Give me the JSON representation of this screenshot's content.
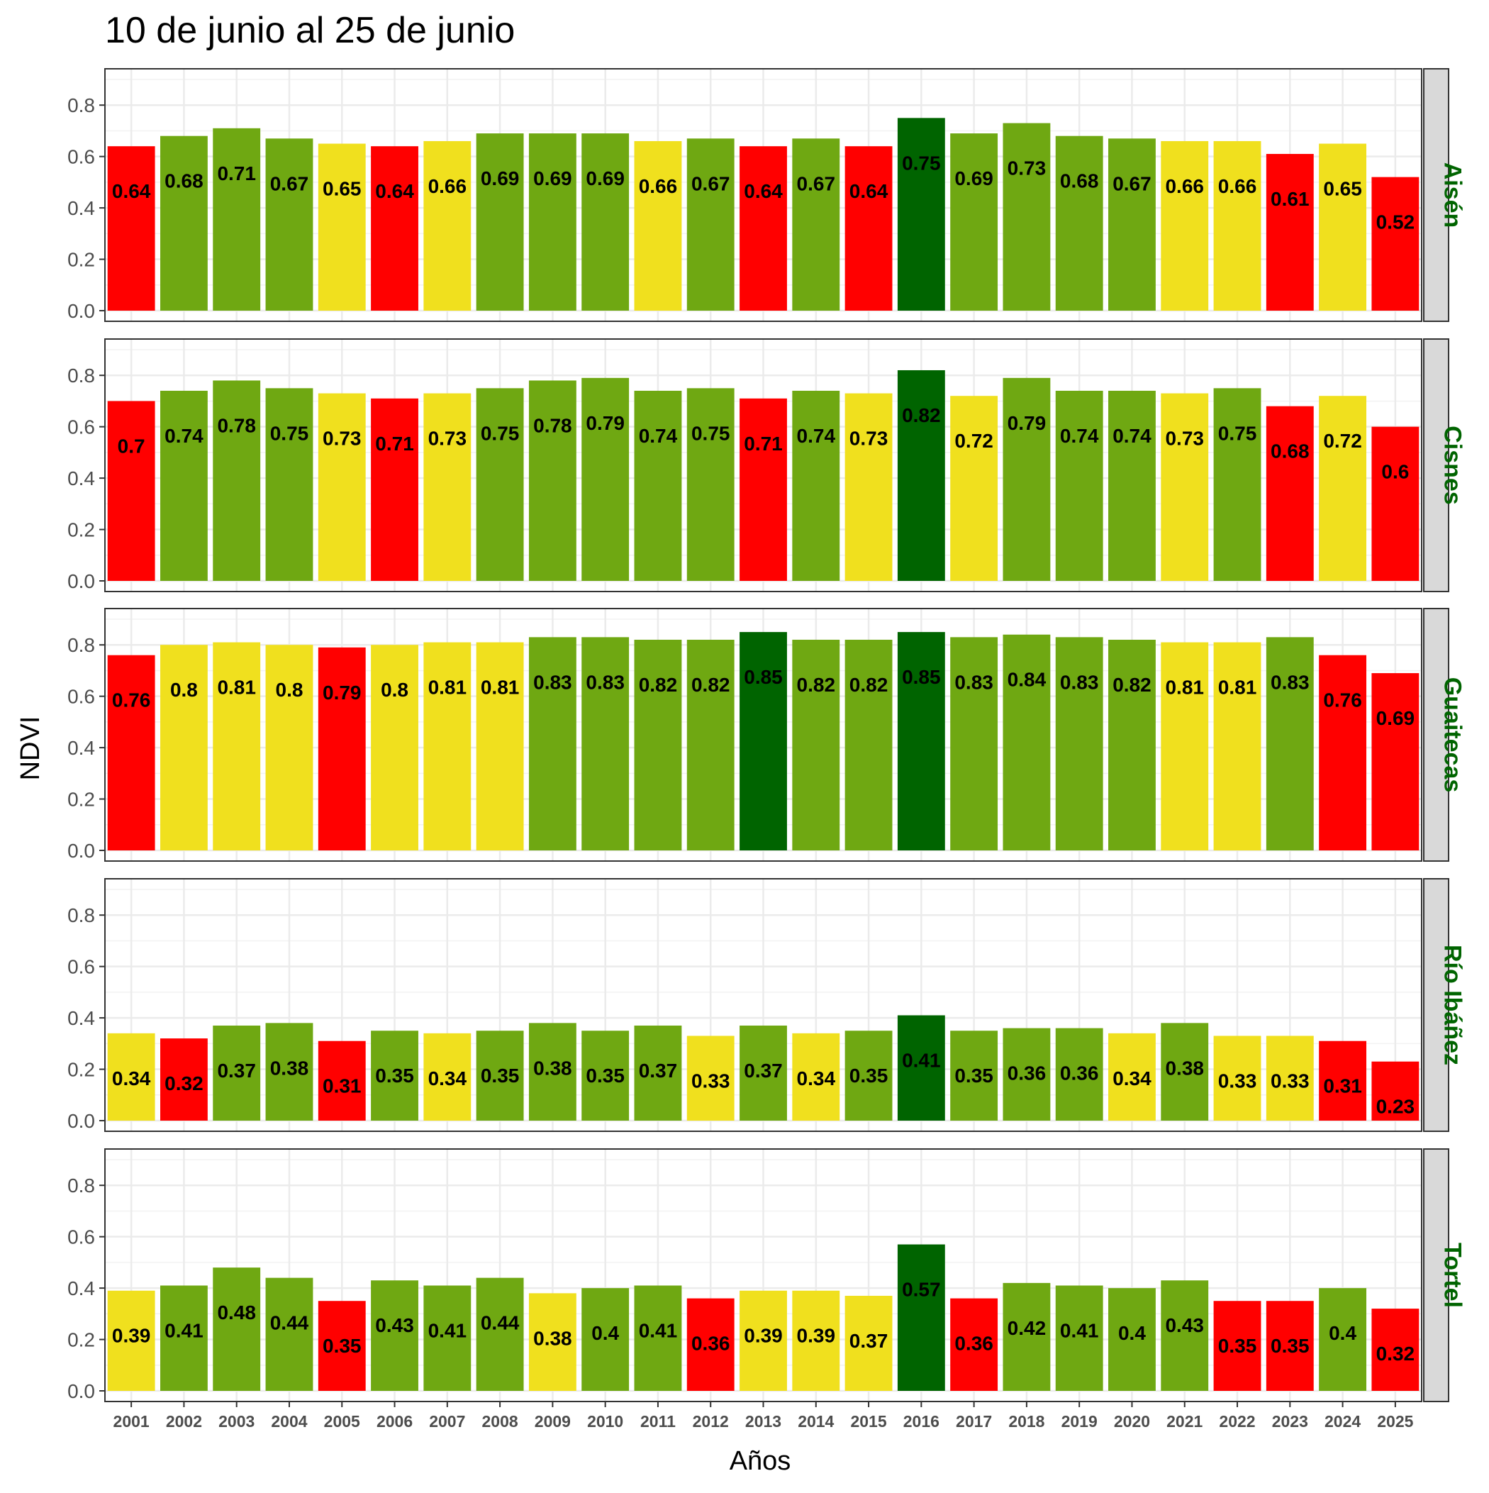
{
  "chart_data": {
    "type": "bar",
    "title": "10 de junio al 25 de junio",
    "xlabel": "Años",
    "ylabel": "NDVI",
    "ylim": [
      0,
      0.9
    ],
    "yticks": [
      "0.0",
      "0.2",
      "0.4",
      "0.6",
      "0.8"
    ],
    "grid": true,
    "layout": "faceted-rows",
    "categories": [
      "2001",
      "2002",
      "2003",
      "2004",
      "2005",
      "2006",
      "2007",
      "2008",
      "2009",
      "2010",
      "2011",
      "2012",
      "2013",
      "2014",
      "2015",
      "2016",
      "2017",
      "2018",
      "2019",
      "2020",
      "2021",
      "2022",
      "2023",
      "2024",
      "2025"
    ],
    "colors": {
      "red": "#ff0000",
      "yellow": "#f0e01e",
      "green": "#6fa812",
      "darkgreen": "#006400"
    },
    "panels": [
      {
        "name": "Aisén",
        "values": [
          0.64,
          0.68,
          0.71,
          0.67,
          0.65,
          0.64,
          0.66,
          0.69,
          0.69,
          0.69,
          0.66,
          0.67,
          0.64,
          0.67,
          0.64,
          0.75,
          0.69,
          0.73,
          0.68,
          0.67,
          0.66,
          0.66,
          0.61,
          0.65,
          0.52
        ],
        "labels": [
          "0.64",
          "0.68",
          "0.71",
          "0.67",
          "0.65",
          "0.64",
          "0.66",
          "0.69",
          "0.69",
          "0.69",
          "0.66",
          "0.67",
          "0.64",
          "0.67",
          "0.64",
          "0.75",
          "0.69",
          "0.73",
          "0.68",
          "0.67",
          "0.66",
          "0.66",
          "0.61",
          "0.65",
          "0.52"
        ],
        "colors": [
          "red",
          "green",
          "green",
          "green",
          "yellow",
          "red",
          "yellow",
          "green",
          "green",
          "green",
          "yellow",
          "green",
          "red",
          "green",
          "red",
          "darkgreen",
          "green",
          "green",
          "green",
          "green",
          "yellow",
          "yellow",
          "red",
          "yellow",
          "red"
        ]
      },
      {
        "name": "Cisnes",
        "values": [
          0.7,
          0.74,
          0.78,
          0.75,
          0.73,
          0.71,
          0.73,
          0.75,
          0.78,
          0.79,
          0.74,
          0.75,
          0.71,
          0.74,
          0.73,
          0.82,
          0.72,
          0.79,
          0.74,
          0.74,
          0.73,
          0.75,
          0.68,
          0.72,
          0.6
        ],
        "labels": [
          "0.7",
          "0.74",
          "0.78",
          "0.75",
          "0.73",
          "0.71",
          "0.73",
          "0.75",
          "0.78",
          "0.79",
          "0.74",
          "0.75",
          "0.71",
          "0.74",
          "0.73",
          "0.82",
          "0.72",
          "0.79",
          "0.74",
          "0.74",
          "0.73",
          "0.75",
          "0.68",
          "0.72",
          "0.6"
        ],
        "colors": [
          "red",
          "green",
          "green",
          "green",
          "yellow",
          "red",
          "yellow",
          "green",
          "green",
          "green",
          "green",
          "green",
          "red",
          "green",
          "yellow",
          "darkgreen",
          "yellow",
          "green",
          "green",
          "green",
          "yellow",
          "green",
          "red",
          "yellow",
          "red"
        ]
      },
      {
        "name": "Guaitecas",
        "values": [
          0.76,
          0.8,
          0.81,
          0.8,
          0.79,
          0.8,
          0.81,
          0.81,
          0.83,
          0.83,
          0.82,
          0.82,
          0.85,
          0.82,
          0.82,
          0.85,
          0.83,
          0.84,
          0.83,
          0.82,
          0.81,
          0.81,
          0.83,
          0.76,
          0.69
        ],
        "labels": [
          "0.76",
          "0.8",
          "0.81",
          "0.8",
          "0.79",
          "0.8",
          "0.81",
          "0.81",
          "0.83",
          "0.83",
          "0.82",
          "0.82",
          "0.85",
          "0.82",
          "0.82",
          "0.85",
          "0.83",
          "0.84",
          "0.83",
          "0.82",
          "0.81",
          "0.81",
          "0.83",
          "0.76",
          "0.69"
        ],
        "colors": [
          "red",
          "yellow",
          "yellow",
          "yellow",
          "red",
          "yellow",
          "yellow",
          "yellow",
          "green",
          "green",
          "green",
          "green",
          "darkgreen",
          "green",
          "green",
          "darkgreen",
          "green",
          "green",
          "green",
          "green",
          "yellow",
          "yellow",
          "green",
          "red",
          "red"
        ]
      },
      {
        "name": "Río Ibáñez",
        "values": [
          0.34,
          0.32,
          0.37,
          0.38,
          0.31,
          0.35,
          0.34,
          0.35,
          0.38,
          0.35,
          0.37,
          0.33,
          0.37,
          0.34,
          0.35,
          0.41,
          0.35,
          0.36,
          0.36,
          0.34,
          0.38,
          0.33,
          0.33,
          0.31,
          0.23
        ],
        "labels": [
          "0.34",
          "0.32",
          "0.37",
          "0.38",
          "0.31",
          "0.35",
          "0.34",
          "0.35",
          "0.38",
          "0.35",
          "0.37",
          "0.33",
          "0.37",
          "0.34",
          "0.35",
          "0.41",
          "0.35",
          "0.36",
          "0.36",
          "0.34",
          "0.38",
          "0.33",
          "0.33",
          "0.31",
          "0.23"
        ],
        "colors": [
          "yellow",
          "red",
          "green",
          "green",
          "red",
          "green",
          "yellow",
          "green",
          "green",
          "green",
          "green",
          "yellow",
          "green",
          "yellow",
          "green",
          "darkgreen",
          "green",
          "green",
          "green",
          "yellow",
          "green",
          "yellow",
          "yellow",
          "red",
          "red"
        ]
      },
      {
        "name": "Tortel",
        "values": [
          0.39,
          0.41,
          0.48,
          0.44,
          0.35,
          0.43,
          0.41,
          0.44,
          0.38,
          0.4,
          0.41,
          0.36,
          0.39,
          0.39,
          0.37,
          0.57,
          0.36,
          0.42,
          0.41,
          0.4,
          0.43,
          0.35,
          0.35,
          0.4,
          0.32
        ],
        "labels": [
          "0.39",
          "0.41",
          "0.48",
          "0.44",
          "0.35",
          "0.43",
          "0.41",
          "0.44",
          "0.38",
          "0.4",
          "0.41",
          "0.36",
          "0.39",
          "0.39",
          "0.37",
          "0.57",
          "0.36",
          "0.42",
          "0.41",
          "0.4",
          "0.43",
          "0.35",
          "0.35",
          "0.4",
          "0.32"
        ],
        "colors": [
          "yellow",
          "green",
          "green",
          "green",
          "red",
          "green",
          "green",
          "green",
          "yellow",
          "green",
          "green",
          "red",
          "yellow",
          "yellow",
          "yellow",
          "darkgreen",
          "red",
          "green",
          "green",
          "green",
          "green",
          "red",
          "red",
          "green",
          "red"
        ]
      }
    ]
  }
}
